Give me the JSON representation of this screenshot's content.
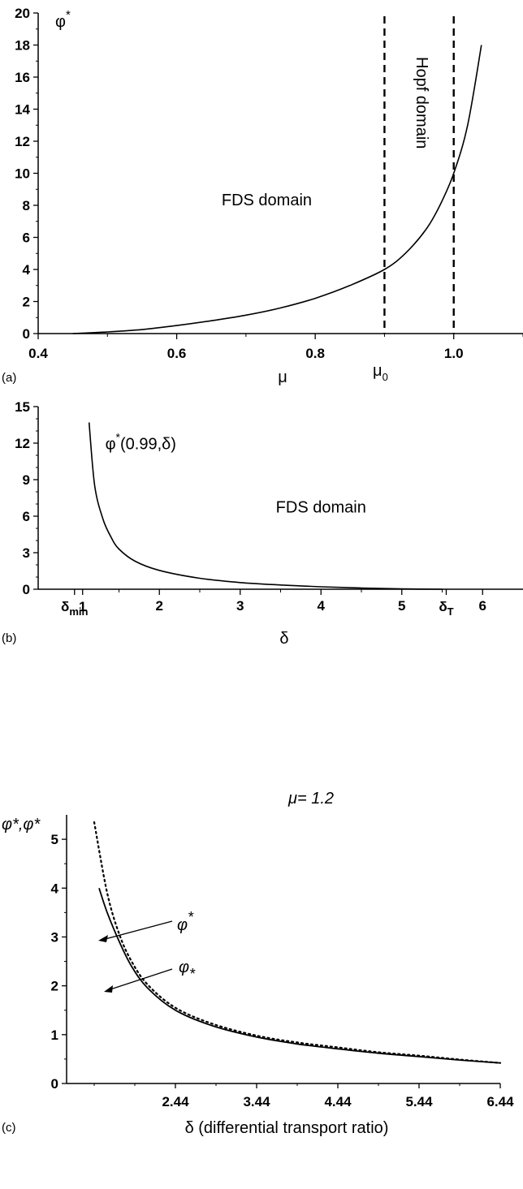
{
  "chart_data": [
    {
      "panel_label": "(a)",
      "type": "line",
      "xlabel": "μ",
      "ylabel": "φ",
      "ylabel_sup": "*",
      "xlim": [
        0.4,
        1.1
      ],
      "ylim": [
        0,
        20
      ],
      "xticks": [
        0.4,
        0.6,
        0.8,
        1.0
      ],
      "xtick_labels": [
        "0.4",
        "0.6",
        "0.8",
        "1.0"
      ],
      "yticks": [
        0,
        2,
        4,
        6,
        8,
        10,
        12,
        14,
        16,
        18,
        20
      ],
      "ytick_labels": [
        "0",
        "2",
        "4",
        "6",
        "8",
        "10",
        "12",
        "14",
        "16",
        "18",
        "20"
      ],
      "series": [
        {
          "style": "solid",
          "x": [
            0.45,
            0.5,
            0.55,
            0.6,
            0.65,
            0.7,
            0.75,
            0.8,
            0.85,
            0.9,
            0.93,
            0.96,
            0.98,
            1.0,
            1.02,
            1.04
          ],
          "y": [
            0.0,
            0.1,
            0.25,
            0.5,
            0.8,
            1.15,
            1.6,
            2.2,
            3.0,
            4.0,
            5.0,
            6.5,
            8.0,
            10.0,
            13.0,
            18.0
          ]
        }
      ],
      "vlines": [
        {
          "x": 0.9,
          "style": "dashed",
          "label": "μ",
          "label_sub": "0"
        },
        {
          "x": 1.0,
          "style": "dashed"
        }
      ],
      "annotations": [
        {
          "text": "FDS domain",
          "x": 0.73,
          "y": 8.0
        },
        {
          "text": "Hopf domain",
          "x": 0.95,
          "y": 15.5,
          "rotation": 90
        }
      ]
    },
    {
      "panel_label": "(b)",
      "type": "line",
      "xlabel": "δ",
      "xlim": [
        0.5,
        6.5
      ],
      "ylim": [
        0,
        15
      ],
      "xticks": [
        2,
        3,
        4,
        5,
        6
      ],
      "xtick_labels": [
        "2",
        "3",
        "4",
        "5",
        "6"
      ],
      "xtick_special": [
        {
          "x": 0.95,
          "label": "δ",
          "sub": "min"
        },
        {
          "x": 1.05,
          "label": "1"
        },
        {
          "x": 5.55,
          "label": "δ",
          "sub": "T"
        }
      ],
      "yticks": [
        0,
        3,
        6,
        9,
        12,
        15
      ],
      "ytick_labels": [
        "0",
        "3",
        "6",
        "9",
        "12",
        "15"
      ],
      "series": [
        {
          "style": "solid",
          "x": [
            1.13,
            1.2,
            1.3,
            1.4,
            1.5,
            1.7,
            2.0,
            2.5,
            3.0,
            3.5,
            4.0,
            4.5,
            5.0,
            5.5
          ],
          "y": [
            13.7,
            8.5,
            5.8,
            4.3,
            3.3,
            2.3,
            1.55,
            0.9,
            0.55,
            0.35,
            0.2,
            0.1,
            0.03,
            0.0
          ]
        }
      ],
      "annotations": [
        {
          "text": "φ",
          "sup": "*",
          "rest": "(0.99,δ)",
          "x": 1.33,
          "y": 11.5
        },
        {
          "text": "FDS domain",
          "x": 4.0,
          "y": 6.3
        }
      ]
    },
    {
      "panel_label": "(c)",
      "type": "line",
      "title": "μ= 1.2",
      "xlabel": "δ (differential transport ratio)",
      "ylabel": "φ*,φ*",
      "xlim": [
        1.1,
        6.44
      ],
      "ylim": [
        0,
        5.5
      ],
      "xticks": [
        2.44,
        3.44,
        4.44,
        5.44,
        6.44
      ],
      "xtick_labels": [
        "2.44",
        "3.44",
        "4.44",
        "5.44",
        "6.44"
      ],
      "yticks": [
        0,
        1,
        2,
        3,
        4,
        5
      ],
      "ytick_labels": [
        "0",
        "1",
        "2",
        "3",
        "4",
        "5"
      ],
      "series": [
        {
          "name": "φ*",
          "style": "dotted",
          "x": [
            1.44,
            1.6,
            1.75,
            1.9,
            2.1,
            2.44,
            2.9,
            3.44,
            3.94,
            4.44,
            4.94,
            5.44,
            5.94,
            6.44
          ],
          "y": [
            5.35,
            3.9,
            3.05,
            2.5,
            2.02,
            1.55,
            1.22,
            0.98,
            0.84,
            0.74,
            0.64,
            0.57,
            0.49,
            0.42
          ]
        },
        {
          "name": "φ*",
          "style": "solid",
          "x": [
            1.5,
            1.6,
            1.75,
            1.9,
            2.1,
            2.44,
            2.9,
            3.44,
            3.94,
            4.44,
            4.94,
            5.44,
            5.94,
            6.44
          ],
          "y": [
            4.0,
            3.5,
            2.9,
            2.4,
            1.95,
            1.5,
            1.18,
            0.95,
            0.81,
            0.71,
            0.62,
            0.55,
            0.48,
            0.42
          ]
        }
      ],
      "annotations": [
        {
          "text": "φ",
          "sup": "*",
          "target": "dotted"
        },
        {
          "text": "φ",
          "sub": "*",
          "target": "solid"
        }
      ]
    }
  ]
}
